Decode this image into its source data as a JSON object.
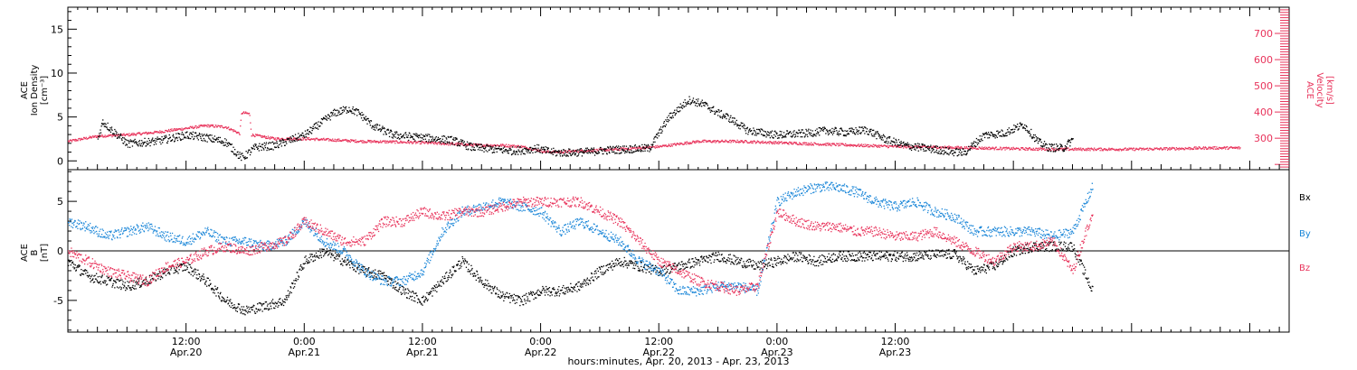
{
  "chart_data": [
    {
      "type": "scatter",
      "panel": "top",
      "ylabel": [
        "ACE",
        "Ion Density",
        "[cm⁻³]"
      ],
      "ylim": [
        -1,
        17.5
      ],
      "yticks": [
        0,
        5,
        10,
        15
      ],
      "y2label": [
        "ACE",
        "Velocity",
        "[km/s]"
      ],
      "y2lim": [
        180,
        800
      ],
      "y2ticks": [
        300,
        400,
        500,
        600,
        700
      ],
      "colors": {
        "density": "#000000",
        "velocity": "#e8335b"
      },
      "series": [
        {
          "axis": "left",
          "x": [
            3.0,
            3.5,
            4.5,
            6,
            9,
            12,
            14,
            16,
            17.5,
            17.8,
            19,
            21,
            24,
            27,
            28.5,
            29.5,
            31,
            33,
            35,
            37,
            39,
            41,
            43,
            45,
            46.5,
            47.5,
            48.5,
            49.5,
            51,
            53,
            55,
            57,
            59,
            61,
            63,
            64.5,
            66,
            67,
            69,
            72,
            75,
            77,
            79,
            81,
            83,
            85,
            87,
            88.5,
            89.5,
            91,
            93,
            95,
            97,
            98.5,
            99.5,
            101,
            102
          ],
          "values": [
            2.5,
            4.5,
            3.5,
            2,
            2.3,
            3,
            2.7,
            2.2,
            0.5,
            0.5,
            1.6,
            1.8,
            3,
            5.5,
            6,
            5.5,
            4,
            3,
            2.8,
            2.6,
            2.4,
            1.6,
            1.4,
            1.2,
            1.3,
            1.5,
            1.2,
            1.0,
            1.0,
            1.1,
            1.3,
            1.4,
            1.5,
            5,
            7,
            6.5,
            5.5,
            5,
            3.5,
            3,
            3.2,
            3.5,
            3.3,
            3.6,
            2.5,
            1.8,
            1.5,
            1.3,
            1.1,
            1.0,
            3.0,
            3.2,
            4.2,
            2.2,
            1.6,
            1.5,
            2.5
          ]
        },
        {
          "axis": "right",
          "x": [
            0,
            3,
            6,
            9,
            12,
            14,
            16,
            17.4,
            17.6,
            18.4,
            18.6,
            21,
            24,
            27,
            30,
            33,
            36,
            39,
            42,
            44,
            46,
            48.5,
            50,
            53,
            56,
            58,
            60,
            64,
            68,
            72,
            76,
            80,
            84,
            88,
            92,
            96,
            100,
            104,
            108,
            112,
            116,
            119
          ],
          "values": [
            290,
            310,
            315,
            325,
            340,
            350,
            345,
            320,
            400,
            395,
            315,
            300,
            300,
            295,
            290,
            288,
            285,
            280,
            275,
            275,
            270,
            250,
            250,
            255,
            260,
            265,
            270,
            290,
            290,
            285,
            280,
            275,
            270,
            268,
            265,
            262,
            260,
            260,
            260,
            262,
            265,
            265
          ]
        }
      ]
    },
    {
      "type": "scatter",
      "panel": "bottom",
      "title": "",
      "xlabel": "hours:minutes, Apr. 20, 2013 - Apr. 23, 2013",
      "ylabel": [
        "ACE",
        "B",
        "[nT]"
      ],
      "ylim": [
        -8.2,
        8.2
      ],
      "yticks": [
        -5,
        0,
        5
      ],
      "categories": [
        "12:00",
        "0:00",
        "12:00",
        "0:00",
        "12:00",
        "0:00",
        "12:00"
      ],
      "date_labels": [
        "Apr.20",
        "Apr.21",
        "Apr.21",
        "Apr.22",
        "Apr.22",
        "Apr.23",
        "Apr.23"
      ],
      "xlim": [
        0,
        124
      ],
      "xticks": [
        12,
        24,
        36,
        48,
        60,
        72,
        84
      ],
      "series": [
        {
          "name": "Bx",
          "color": "#000000",
          "x": [
            0,
            2,
            4,
            6,
            8,
            10,
            12,
            14,
            16,
            18,
            20,
            22,
            24,
            26,
            28,
            30,
            32,
            34,
            36,
            38,
            40,
            42,
            44,
            46,
            48,
            50,
            52,
            54,
            56,
            58,
            60,
            62,
            64,
            66,
            68,
            70,
            72,
            74,
            76,
            78,
            80,
            82,
            84,
            86,
            88,
            90,
            92,
            94,
            96,
            98,
            100,
            102,
            104
          ],
          "values": [
            -1,
            -2.5,
            -3,
            -3.5,
            -3,
            -2,
            -1.5,
            -3,
            -5,
            -6,
            -5.5,
            -5,
            -1,
            0,
            -1,
            -2,
            -2.5,
            -4,
            -5,
            -3,
            -1,
            -3,
            -4.5,
            -5,
            -4,
            -4,
            -3.5,
            -2,
            -1,
            -1.5,
            -2,
            -1.5,
            -1,
            -0.5,
            -1,
            -1.5,
            -1,
            -0.5,
            -1,
            -0.5,
            -0.5,
            -0.5,
            -0.5,
            -0.5,
            -0.3,
            -0.3,
            -2,
            -1.5,
            0,
            0.5,
            0.5,
            0.5,
            -4
          ]
        },
        {
          "name": "By",
          "color": "#1a86d8",
          "x": [
            0,
            2,
            4,
            6,
            8,
            10,
            12,
            14,
            16,
            18,
            20,
            22,
            24,
            26,
            28,
            30,
            32,
            34,
            36,
            38,
            40,
            42,
            44,
            46,
            48,
            50,
            52,
            54,
            56,
            58,
            60,
            62,
            64,
            66,
            68,
            70,
            72,
            74,
            76,
            78,
            80,
            82,
            84,
            86,
            88,
            90,
            92,
            94,
            96,
            98,
            100,
            102,
            104
          ],
          "values": [
            3,
            2.5,
            1.5,
            2,
            2.5,
            1.5,
            1,
            2,
            1,
            1,
            0.5,
            1,
            3,
            1,
            0,
            -2,
            -3,
            -3,
            -2,
            2,
            4,
            4.5,
            5,
            4.5,
            4,
            2,
            3,
            2,
            1,
            -1,
            -2,
            -4,
            -4,
            -3.5,
            -3.5,
            -4,
            5,
            6,
            6.5,
            6.5,
            6,
            5,
            4.5,
            5,
            4,
            3.5,
            2,
            2,
            2,
            2,
            1.5,
            2,
            6.5
          ]
        },
        {
          "name": "Bz",
          "color": "#e8335b",
          "x": [
            0,
            2,
            4,
            6,
            8,
            10,
            12,
            14,
            16,
            18,
            20,
            22,
            24,
            26,
            28,
            30,
            32,
            34,
            36,
            38,
            40,
            42,
            44,
            46,
            48,
            50,
            52,
            54,
            56,
            58,
            60,
            62,
            64,
            66,
            68,
            70,
            72,
            74,
            76,
            78,
            80,
            82,
            84,
            86,
            88,
            90,
            92,
            94,
            96,
            98,
            100,
            102,
            104
          ],
          "values": [
            0,
            -1,
            -2,
            -2.5,
            -3,
            -1.5,
            -1,
            0,
            0.5,
            0,
            0.5,
            1,
            3,
            2,
            1,
            1,
            3,
            3,
            4,
            3.5,
            4,
            4,
            4.5,
            5,
            5,
            5,
            5,
            4,
            3,
            1,
            -1,
            -2,
            -3,
            -3.5,
            -4,
            -3.5,
            4,
            3,
            2.5,
            2.5,
            2,
            2,
            1.5,
            1.5,
            2,
            1,
            0,
            -1,
            0.5,
            0.5,
            1,
            -2,
            4
          ]
        }
      ]
    }
  ]
}
